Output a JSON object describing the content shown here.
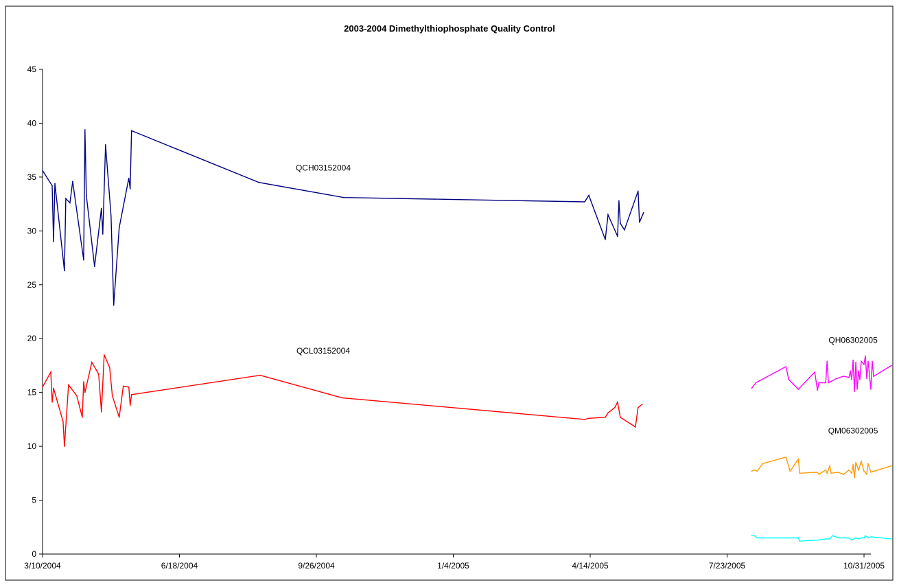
{
  "chart_data": {
    "type": "line",
    "title": "2003-2004 Dimethylthiophosphate Quality Control",
    "xlabel": "",
    "ylabel": "",
    "ylim": [
      0,
      45
    ],
    "yticks": [
      0,
      5,
      10,
      15,
      20,
      25,
      30,
      35,
      40,
      45
    ],
    "xlim": [
      "2004-03-10",
      "2005-11-05"
    ],
    "xticks": [
      {
        "date": "2004-03-10",
        "label": "3/10/2004"
      },
      {
        "date": "2004-06-18",
        "label": "6/18/2004"
      },
      {
        "date": "2004-09-26",
        "label": "9/26/2004"
      },
      {
        "date": "2005-01-04",
        "label": "1/4/2005"
      },
      {
        "date": "2005-04-14",
        "label": "4/14/2005"
      },
      {
        "date": "2005-07-23",
        "label": "7/23/2005"
      },
      {
        "date": "2005-10-31",
        "label": "10/31/2005"
      }
    ],
    "grid": false,
    "legend": "none",
    "series": [
      {
        "name": "QCH03152004",
        "color": "#000080",
        "points": [
          [
            "2004-03-10",
            35.6
          ],
          [
            "2004-03-17",
            34.2
          ],
          [
            "2004-03-18",
            29.0
          ],
          [
            "2004-03-19",
            34.4
          ],
          [
            "2004-03-26",
            26.3
          ],
          [
            "2004-03-27",
            33.0
          ],
          [
            "2004-03-30",
            32.6
          ],
          [
            "2004-04-01",
            34.6
          ],
          [
            "2004-04-09",
            27.3
          ],
          [
            "2004-04-10",
            39.4
          ],
          [
            "2004-04-11",
            33.3
          ],
          [
            "2004-04-17",
            26.7
          ],
          [
            "2004-04-22",
            32.1
          ],
          [
            "2004-04-23",
            29.7
          ],
          [
            "2004-04-25",
            38.0
          ],
          [
            "2004-04-29",
            31.4
          ],
          [
            "2004-05-01",
            23.1
          ],
          [
            "2004-05-05",
            30.3
          ],
          [
            "2004-05-12",
            34.9
          ],
          [
            "2004-05-13",
            33.9
          ],
          [
            "2004-05-14",
            39.3
          ],
          [
            "2004-08-15",
            34.5
          ],
          [
            "2004-10-16",
            33.1
          ],
          [
            "2005-04-10",
            32.7
          ],
          [
            "2005-04-13",
            33.3
          ],
          [
            "2005-04-25",
            29.2
          ],
          [
            "2005-04-27",
            31.5
          ],
          [
            "2005-05-04",
            29.5
          ],
          [
            "2005-05-05",
            32.8
          ],
          [
            "2005-05-06",
            30.7
          ],
          [
            "2005-05-09",
            30.1
          ],
          [
            "2005-05-19",
            33.7
          ],
          [
            "2005-05-20",
            30.8
          ],
          [
            "2005-05-23",
            31.7
          ]
        ]
      },
      {
        "name": "QCL03152004",
        "color": "#FF0000",
        "points": [
          [
            "2004-03-10",
            15.5
          ],
          [
            "2004-03-16",
            16.9
          ],
          [
            "2004-03-17",
            14.1
          ],
          [
            "2004-03-18",
            15.4
          ],
          [
            "2004-03-25",
            12.3
          ],
          [
            "2004-03-26",
            10.0
          ],
          [
            "2004-03-29",
            15.7
          ],
          [
            "2004-04-04",
            14.7
          ],
          [
            "2004-04-08",
            12.7
          ],
          [
            "2004-04-09",
            16.0
          ],
          [
            "2004-04-10",
            15.0
          ],
          [
            "2004-04-15",
            17.8
          ],
          [
            "2004-04-20",
            16.7
          ],
          [
            "2004-04-22",
            13.2
          ],
          [
            "2004-04-24",
            18.5
          ],
          [
            "2004-04-28",
            17.3
          ],
          [
            "2004-04-30",
            14.7
          ],
          [
            "2004-05-05",
            12.7
          ],
          [
            "2004-05-08",
            15.6
          ],
          [
            "2004-05-12",
            15.5
          ],
          [
            "2004-05-13",
            13.8
          ],
          [
            "2004-05-14",
            14.8
          ],
          [
            "2004-08-16",
            16.6
          ],
          [
            "2004-10-15",
            14.5
          ],
          [
            "2005-04-10",
            12.5
          ],
          [
            "2005-04-13",
            12.6
          ],
          [
            "2005-04-25",
            12.7
          ],
          [
            "2005-04-27",
            13.1
          ],
          [
            "2005-05-02",
            13.6
          ],
          [
            "2005-05-04",
            14.1
          ],
          [
            "2005-05-06",
            12.7
          ],
          [
            "2005-05-17",
            11.8
          ],
          [
            "2005-05-19",
            13.6
          ],
          [
            "2005-05-22",
            13.9
          ]
        ]
      },
      {
        "name": "QH06302005",
        "color": "#FF00FF",
        "points": [
          [
            "2005-08-10",
            15.4
          ],
          [
            "2005-08-13",
            15.9
          ],
          [
            "2005-09-04",
            17.4
          ],
          [
            "2005-09-06",
            16.2
          ],
          [
            "2005-09-13",
            15.3
          ],
          [
            "2005-09-25",
            16.9
          ],
          [
            "2005-09-27",
            15.2
          ],
          [
            "2005-09-28",
            15.9
          ],
          [
            "2005-10-03",
            15.9
          ],
          [
            "2005-10-04",
            17.9
          ],
          [
            "2005-10-05",
            15.9
          ],
          [
            "2005-10-11",
            16.3
          ],
          [
            "2005-10-16",
            16.5
          ],
          [
            "2005-10-20",
            16.4
          ],
          [
            "2005-10-21",
            17.0
          ],
          [
            "2005-10-22",
            16.2
          ],
          [
            "2005-10-23",
            18.0
          ],
          [
            "2005-10-24",
            15.1
          ],
          [
            "2005-10-25",
            17.8
          ],
          [
            "2005-10-26",
            15.3
          ],
          [
            "2005-10-27",
            17.0
          ],
          [
            "2005-10-28",
            16.2
          ],
          [
            "2005-10-29",
            17.9
          ],
          [
            "2005-10-31",
            17.6
          ],
          [
            "2005-11-01",
            18.4
          ],
          [
            "2005-11-02",
            16.3
          ],
          [
            "2005-11-03",
            17.9
          ],
          [
            "2005-11-05",
            15.3
          ],
          [
            "2005-11-06",
            17.9
          ],
          [
            "2005-11-07",
            16.5
          ],
          [
            "2005-11-20",
            17.5
          ]
        ]
      },
      {
        "name": "QM06302005",
        "color": "#FF9900",
        "points": [
          [
            "2005-08-10",
            7.7
          ],
          [
            "2005-08-12",
            7.8
          ],
          [
            "2005-08-14",
            7.7
          ],
          [
            "2005-08-18",
            8.4
          ],
          [
            "2005-09-04",
            9.0
          ],
          [
            "2005-09-07",
            7.7
          ],
          [
            "2005-09-13",
            8.8
          ],
          [
            "2005-09-14",
            7.5
          ],
          [
            "2005-09-27",
            7.6
          ],
          [
            "2005-09-28",
            7.4
          ],
          [
            "2005-10-03",
            7.8
          ],
          [
            "2005-10-04",
            7.5
          ],
          [
            "2005-10-06",
            8.2
          ],
          [
            "2005-10-07",
            7.5
          ],
          [
            "2005-10-12",
            7.6
          ],
          [
            "2005-10-16",
            7.4
          ],
          [
            "2005-10-20",
            7.8
          ],
          [
            "2005-10-22",
            7.5
          ],
          [
            "2005-10-23",
            8.3
          ],
          [
            "2005-10-24",
            7.1
          ],
          [
            "2005-10-25",
            8.5
          ],
          [
            "2005-10-27",
            7.8
          ],
          [
            "2005-10-29",
            8.6
          ],
          [
            "2005-10-31",
            7.7
          ],
          [
            "2005-11-02",
            7.4
          ],
          [
            "2005-11-03",
            8.4
          ],
          [
            "2005-11-05",
            7.6
          ],
          [
            "2005-11-20",
            8.2
          ]
        ]
      },
      {
        "color": "#00FFFF",
        "points": [
          [
            "2005-08-10",
            1.7
          ],
          [
            "2005-08-12",
            1.7
          ],
          [
            "2005-08-14",
            1.5
          ],
          [
            "2005-09-13",
            1.5
          ],
          [
            "2005-09-14",
            1.2
          ],
          [
            "2005-09-28",
            1.3
          ],
          [
            "2005-10-03",
            1.4
          ],
          [
            "2005-10-06",
            1.4
          ],
          [
            "2005-10-08",
            1.7
          ],
          [
            "2005-10-13",
            1.5
          ],
          [
            "2005-10-20",
            1.5
          ],
          [
            "2005-10-22",
            1.3
          ],
          [
            "2005-10-25",
            1.5
          ],
          [
            "2005-10-27",
            1.4
          ],
          [
            "2005-10-29",
            1.5
          ],
          [
            "2005-10-31",
            1.5
          ],
          [
            "2005-11-01",
            1.7
          ],
          [
            "2005-11-03",
            1.5
          ],
          [
            "2005-11-05",
            1.6
          ],
          [
            "2005-11-20",
            1.4
          ]
        ]
      }
    ],
    "annotations": [
      {
        "text": "QCH03152004",
        "x": "2004-10-01",
        "y": 35.6
      },
      {
        "text": "QCL03152004",
        "x": "2004-10-01",
        "y": 18.6
      },
      {
        "text": "QH06302005",
        "x": "2005-10-23",
        "y": 19.6
      },
      {
        "text": "QM06302005",
        "x": "2005-10-23",
        "y": 11.2
      }
    ]
  }
}
